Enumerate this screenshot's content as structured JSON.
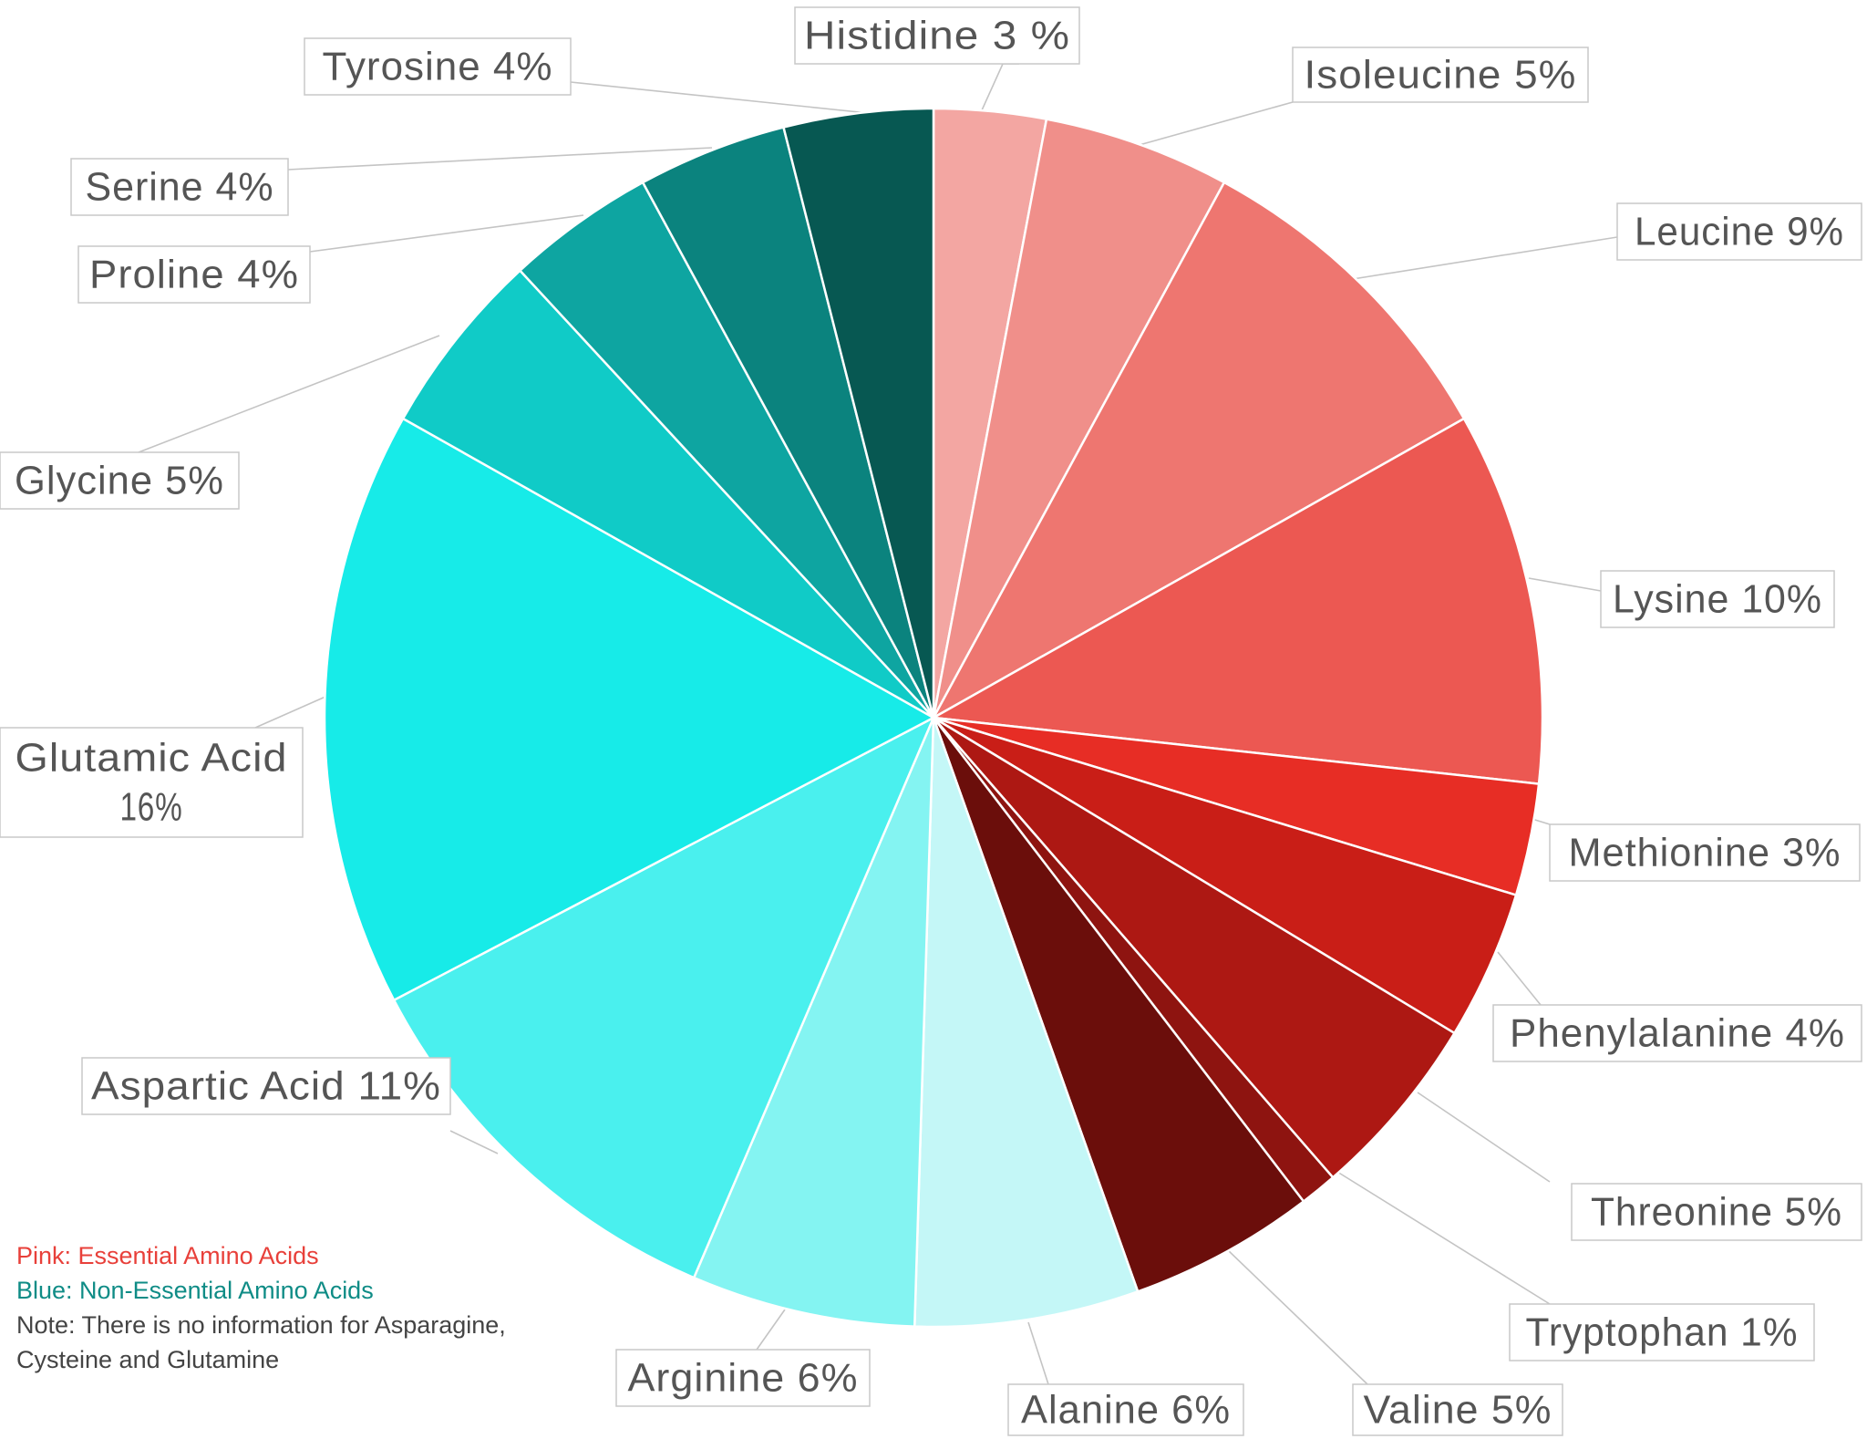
{
  "chart_data": {
    "type": "pie",
    "start_angle_deg": 0,
    "direction": "clockwise",
    "slices": [
      {
        "label": "Histidine 3 %",
        "name": "Histidine",
        "value": 3,
        "color": "#f3a6a2"
      },
      {
        "label": "Isoleucine 5%",
        "name": "Isoleucine",
        "value": 5,
        "color": "#f08f8a"
      },
      {
        "label": "Leucine 9%",
        "name": "Leucine",
        "value": 9,
        "color": "#ee7670"
      },
      {
        "label": "Lysine 10%",
        "name": "Lysine",
        "value": 10,
        "color": "#ec5852"
      },
      {
        "label": "Methionine 3%",
        "name": "Methionine",
        "value": 3,
        "color": "#e72d25"
      },
      {
        "label": "Phenylalanine 4%",
        "name": "Phenylalanine",
        "value": 4,
        "color": "#c91e17"
      },
      {
        "label": "Threonine 5%",
        "name": "Threonine",
        "value": 5,
        "color": "#ad1813"
      },
      {
        "label": "Tryptophan 1%",
        "name": "Tryptophan",
        "value": 1,
        "color": "#8e1410"
      },
      {
        "label": "Valine 5%",
        "name": "Valine",
        "value": 5,
        "color": "#6b0e0b"
      },
      {
        "label": "Alanine 6%",
        "name": "Alanine",
        "value": 6,
        "color": "#c4f7f7"
      },
      {
        "label": "Arginine 6%",
        "name": "Arginine",
        "value": 6,
        "color": "#84f4f2"
      },
      {
        "label": "Aspartic Acid 11%",
        "name": "Aspartic Acid",
        "value": 11,
        "color": "#4af0ee"
      },
      {
        "label": "Glutamic Acid\n16%",
        "name": "Glutamic Acid",
        "value": 16,
        "color": "#17ebe8"
      },
      {
        "label": "Glycine 5%",
        "name": "Glycine",
        "value": 5,
        "color": "#10cbc7"
      },
      {
        "label": "Proline 4%",
        "name": "Proline",
        "value": 4,
        "color": "#0ea5a1"
      },
      {
        "label": "Serine 4%",
        "name": "Serine",
        "value": 4,
        "color": "#0b837e"
      },
      {
        "label": "Tyrosine 4%",
        "name": "Tyrosine",
        "value": 4,
        "color": "#075852"
      }
    ]
  },
  "notes": {
    "pink_prefix": "Pink: ",
    "pink_text": "Essential Amino Acids",
    "blue_prefix": "Blue: ",
    "blue_text_a": "Non-Essential",
    "blue_text_b": " Amino Acids",
    "note_line1": "Note: There is no information for Asparagine,",
    "note_line2": "Cysteine and Glutamine"
  }
}
